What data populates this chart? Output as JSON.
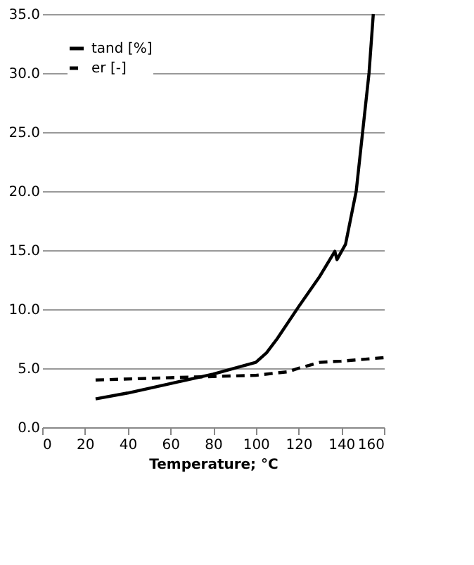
{
  "chart_data": {
    "type": "line",
    "xlabel": "Temperature; °C",
    "xlim": [
      0,
      160
    ],
    "xticks": [
      0,
      20,
      40,
      60,
      80,
      100,
      120,
      140,
      160
    ],
    "ylim": [
      0,
      35
    ],
    "yticks": [
      {
        "value": 0,
        "label": "0.0"
      },
      {
        "value": 5,
        "label": "5.0"
      },
      {
        "value": 10,
        "label": "10.0"
      },
      {
        "value": 15,
        "label": "15.0"
      },
      {
        "value": 20,
        "label": "20.0"
      },
      {
        "value": 25,
        "label": "25.0"
      },
      {
        "value": 30,
        "label": "30.0"
      },
      {
        "value": 35,
        "label": "35.0"
      }
    ],
    "grid": "y",
    "legend": "top left",
    "series": [
      {
        "name": "tand [%]",
        "color": "#000000",
        "line_style": "solid",
        "x": [
          25,
          40,
          60,
          80,
          100,
          105,
          110,
          120,
          130,
          137,
          138,
          142,
          147,
          150,
          153,
          155
        ],
        "values": [
          2.4,
          2.9,
          3.7,
          4.5,
          5.5,
          6.3,
          7.5,
          10.2,
          12.8,
          14.9,
          14.2,
          15.5,
          20,
          25,
          30,
          35
        ]
      },
      {
        "name": "er [-]",
        "color": "#000000",
        "line_style": "dashed",
        "x": [
          25,
          60,
          80,
          100,
          115,
          120,
          130,
          140,
          160
        ],
        "values": [
          4.0,
          4.2,
          4.3,
          4.4,
          4.7,
          5.0,
          5.5,
          5.6,
          5.9
        ]
      }
    ]
  }
}
